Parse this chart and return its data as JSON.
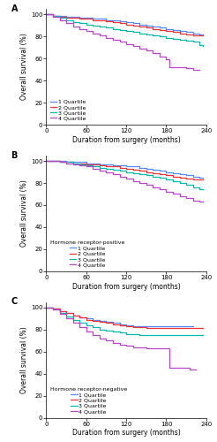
{
  "colors": {
    "q1": "#5588FF",
    "q2": "#EE3333",
    "q3": "#00BBAA",
    "q4": "#BB44CC"
  },
  "panel_labels": [
    "A",
    "B",
    "C"
  ],
  "legend_titles": [
    "",
    "Hormone receptor-positive",
    "Hormone receptor-negative"
  ],
  "quartile_labels": [
    "1 Quartile",
    "2 Quartile",
    "3 Quartile",
    "4 Quartile"
  ],
  "xlabel": "Duration from surgery (months)",
  "ylabel": "Overall survival (%)",
  "xlim": [
    0,
    240
  ],
  "ylim": [
    0,
    105
  ],
  "xticks": [
    0,
    60,
    120,
    180,
    240
  ],
  "yticks": [
    0,
    20,
    40,
    60,
    80,
    100
  ],
  "panelA": {
    "q1": {
      "x": [
        0,
        10,
        20,
        30,
        40,
        50,
        60,
        70,
        80,
        90,
        100,
        110,
        120,
        130,
        140,
        150,
        160,
        170,
        180,
        190,
        200,
        210,
        220,
        230,
        235
      ],
      "y": [
        100,
        99,
        99,
        98,
        98,
        97,
        97,
        96,
        96,
        95,
        95,
        94,
        93,
        92,
        91,
        90,
        89,
        88,
        87,
        86,
        85,
        84,
        83,
        82,
        82
      ]
    },
    "q2": {
      "x": [
        0,
        10,
        20,
        30,
        40,
        50,
        60,
        70,
        80,
        90,
        100,
        110,
        120,
        130,
        140,
        150,
        160,
        170,
        180,
        190,
        200,
        210,
        220,
        230,
        235
      ],
      "y": [
        100,
        99,
        98,
        97,
        97,
        96,
        96,
        95,
        95,
        94,
        93,
        92,
        91,
        90,
        89,
        88,
        87,
        86,
        85,
        84,
        83,
        82,
        81,
        81,
        81
      ]
    },
    "q3": {
      "x": [
        0,
        10,
        20,
        30,
        40,
        50,
        60,
        70,
        80,
        90,
        100,
        110,
        120,
        130,
        140,
        150,
        160,
        170,
        180,
        190,
        200,
        210,
        220,
        230,
        235
      ],
      "y": [
        100,
        99,
        97,
        95,
        93,
        92,
        91,
        90,
        89,
        88,
        87,
        86,
        85,
        84,
        83,
        82,
        81,
        80,
        79,
        78,
        77,
        76,
        75,
        72,
        71
      ]
    },
    "q4": {
      "x": [
        0,
        10,
        20,
        30,
        40,
        50,
        60,
        70,
        80,
        90,
        100,
        110,
        120,
        130,
        140,
        150,
        160,
        170,
        180,
        185,
        195,
        210,
        220,
        230
      ],
      "y": [
        100,
        98,
        95,
        92,
        89,
        87,
        85,
        83,
        81,
        79,
        77,
        75,
        73,
        71,
        69,
        67,
        65,
        62,
        59,
        52,
        52,
        51,
        50,
        50
      ]
    }
  },
  "panelB": {
    "q1": {
      "x": [
        0,
        10,
        20,
        30,
        40,
        50,
        60,
        70,
        80,
        90,
        100,
        110,
        120,
        130,
        140,
        150,
        160,
        170,
        180,
        190,
        200,
        210,
        220,
        230,
        235
      ],
      "y": [
        100,
        100,
        100,
        99,
        99,
        99,
        98,
        98,
        97,
        97,
        96,
        96,
        95,
        95,
        94,
        93,
        92,
        91,
        90,
        89,
        88,
        87,
        86,
        85,
        85
      ]
    },
    "q2": {
      "x": [
        0,
        10,
        20,
        30,
        40,
        50,
        60,
        70,
        80,
        90,
        100,
        110,
        120,
        130,
        140,
        150,
        160,
        170,
        180,
        190,
        200,
        210,
        220,
        230,
        235
      ],
      "y": [
        100,
        100,
        99,
        99,
        98,
        98,
        97,
        97,
        96,
        95,
        95,
        94,
        93,
        92,
        91,
        90,
        89,
        88,
        87,
        86,
        85,
        84,
        83,
        83,
        83
      ]
    },
    "q3": {
      "x": [
        0,
        10,
        20,
        30,
        40,
        50,
        60,
        70,
        80,
        90,
        100,
        110,
        120,
        130,
        140,
        150,
        160,
        170,
        180,
        190,
        200,
        210,
        220,
        230,
        235
      ],
      "y": [
        100,
        100,
        99,
        99,
        98,
        97,
        96,
        95,
        94,
        93,
        92,
        91,
        90,
        89,
        88,
        87,
        86,
        85,
        83,
        82,
        80,
        78,
        76,
        74,
        74
      ]
    },
    "q4": {
      "x": [
        0,
        10,
        20,
        30,
        40,
        50,
        60,
        70,
        80,
        90,
        100,
        110,
        120,
        130,
        140,
        150,
        160,
        170,
        180,
        190,
        200,
        210,
        220,
        230,
        235
      ],
      "y": [
        100,
        100,
        99,
        98,
        97,
        96,
        95,
        93,
        91,
        90,
        88,
        86,
        84,
        82,
        80,
        78,
        76,
        74,
        72,
        70,
        68,
        66,
        64,
        63,
        63
      ]
    }
  },
  "panelC": {
    "q1": {
      "x": [
        0,
        10,
        20,
        30,
        40,
        50,
        60,
        70,
        80,
        90,
        100,
        110,
        120,
        130,
        140,
        150,
        160,
        170,
        180,
        190,
        200,
        210,
        220
      ],
      "y": [
        100,
        99,
        97,
        95,
        93,
        91,
        90,
        89,
        88,
        87,
        86,
        85,
        84,
        83,
        83,
        83,
        83,
        83,
        83,
        83,
        83,
        83,
        83
      ]
    },
    "q2": {
      "x": [
        0,
        10,
        20,
        30,
        40,
        50,
        60,
        70,
        80,
        90,
        100,
        110,
        120,
        130,
        140,
        150,
        160,
        170,
        180,
        190,
        200,
        210,
        225,
        235
      ],
      "y": [
        100,
        99,
        97,
        95,
        93,
        91,
        89,
        88,
        87,
        86,
        85,
        84,
        83,
        82,
        82,
        81,
        81,
        81,
        81,
        81,
        81,
        81,
        81,
        81
      ]
    },
    "q3": {
      "x": [
        0,
        10,
        20,
        30,
        40,
        50,
        60,
        70,
        80,
        90,
        100,
        110,
        120,
        130,
        140,
        150,
        160,
        170,
        180,
        190,
        200,
        215,
        225,
        235
      ],
      "y": [
        100,
        98,
        95,
        92,
        89,
        86,
        84,
        82,
        80,
        79,
        78,
        77,
        76,
        76,
        75,
        75,
        75,
        75,
        75,
        75,
        75,
        75,
        75,
        75
      ]
    },
    "q4": {
      "x": [
        0,
        10,
        20,
        30,
        40,
        50,
        60,
        70,
        80,
        90,
        100,
        110,
        120,
        130,
        140,
        150,
        160,
        170,
        180,
        185,
        200,
        215,
        225
      ],
      "y": [
        100,
        98,
        94,
        90,
        86,
        82,
        78,
        75,
        72,
        70,
        68,
        66,
        65,
        64,
        64,
        63,
        63,
        63,
        63,
        45,
        45,
        44,
        44
      ]
    }
  },
  "fontsize_label": 5.5,
  "fontsize_tick": 5,
  "fontsize_legend": 4.5,
  "fontsize_panel": 7,
  "linewidth": 0.9
}
